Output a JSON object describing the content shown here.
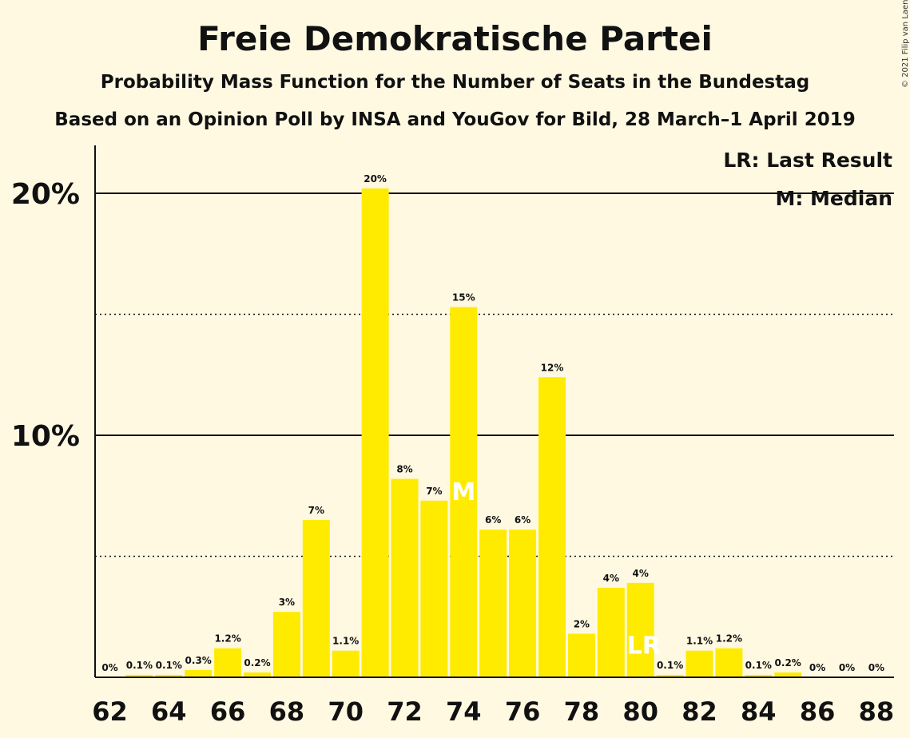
{
  "chart_data": {
    "type": "bar",
    "title": "Freie Demokratische Partei",
    "subtitle": "Probability Mass Function for the Number of Seats in the Bundestag",
    "subtitle2": "Based on an Opinion Poll by INSA and YouGov for Bild, 28 March–1 April 2019",
    "copyright": "© 2021 Filip van Laenen",
    "legend": [
      "LR: Last Result",
      "M: Median"
    ],
    "legend_position": "top-right",
    "x": [
      62,
      63,
      64,
      65,
      66,
      67,
      68,
      69,
      70,
      71,
      72,
      73,
      74,
      75,
      76,
      77,
      78,
      79,
      80,
      81,
      82,
      83,
      84,
      85,
      86,
      87,
      88
    ],
    "values": [
      0,
      0.1,
      0.1,
      0.3,
      1.2,
      0.2,
      2.7,
      6.5,
      1.1,
      20.2,
      8.2,
      7.3,
      15.3,
      6.1,
      6.1,
      12.4,
      1.8,
      3.7,
      3.9,
      0.1,
      1.1,
      1.2,
      0.1,
      0.2,
      0,
      0,
      0
    ],
    "labels": [
      "0%",
      "0.1%",
      "0.1%",
      "0.3%",
      "1.2%",
      "0.2%",
      "3%",
      "7%",
      "1.1%",
      "20%",
      "8%",
      "7%",
      "15%",
      "6%",
      "6%",
      "12%",
      "2%",
      "4%",
      "4%",
      "0.1%",
      "1.1%",
      "1.2%",
      "0.1%",
      "0.2%",
      "0%",
      "0%",
      "0%"
    ],
    "x_tick_labels": [
      "62",
      "64",
      "66",
      "68",
      "70",
      "72",
      "74",
      "76",
      "78",
      "80",
      "82",
      "84",
      "86",
      "88"
    ],
    "y_tick_labels": [
      {
        "value": 10,
        "label": "10%"
      },
      {
        "value": 20,
        "label": "20%"
      }
    ],
    "ylim": [
      0,
      22
    ],
    "median": {
      "seat": 74,
      "marker": "M"
    },
    "last_result": {
      "seat": 80,
      "marker": "LR"
    },
    "colors": {
      "bar": "#FFEB00",
      "background": "#FFF9E2",
      "marker": "#FFFFFF"
    }
  }
}
